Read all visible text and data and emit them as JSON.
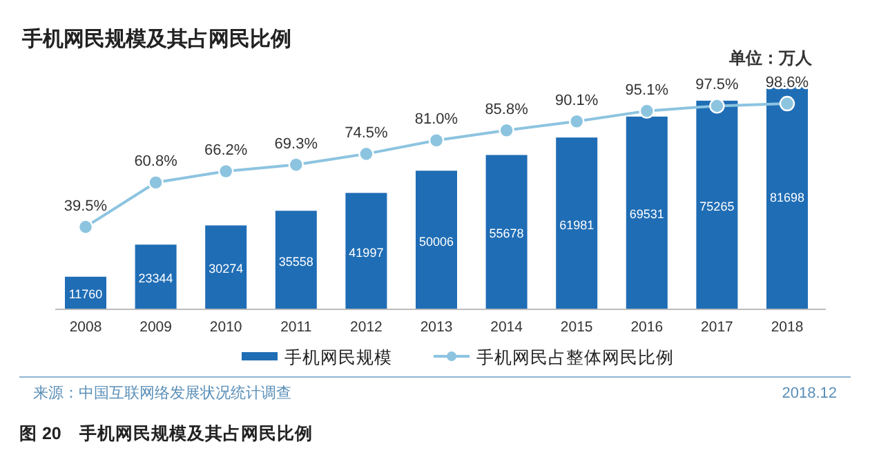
{
  "chart_data": {
    "type": "bar",
    "title": "手机网民规模及其占网民比例",
    "ylabel": "单位：万人",
    "categories": [
      "2008",
      "2009",
      "2010",
      "2011",
      "2012",
      "2013",
      "2014",
      "2015",
      "2016",
      "2017",
      "2018"
    ],
    "series": [
      {
        "name": "手机网民规模",
        "color": "#1f6db5",
        "values": [
          11760,
          23344,
          30274,
          35558,
          41997,
          50006,
          55678,
          61981,
          69531,
          75265,
          81698
        ],
        "value_labels": [
          "11760",
          "23344",
          "30274",
          "35558",
          "41997",
          "50006",
          "55678",
          "61981",
          "69531",
          "75265",
          "81698"
        ]
      },
      {
        "name": "手机网民占整体网民比例",
        "type": "line",
        "axis": "y2",
        "color": "#8cc4e0",
        "values": [
          39.5,
          60.8,
          66.2,
          69.3,
          74.5,
          81.0,
          85.8,
          90.1,
          95.1,
          97.5,
          98.6
        ],
        "value_labels": [
          "39.5%",
          "60.8%",
          "66.2%",
          "69.3%",
          "74.5%",
          "81.0%",
          "85.8%",
          "90.1%",
          "95.1%",
          "97.5%",
          "98.6%"
        ]
      }
    ],
    "marker": "circle",
    "legend": "bottom",
    "annotations": [
      "来源：中国互联网络发展状况统计调查",
      "2018.12",
      "图 20　手机网民规模及其占网民比例"
    ]
  }
}
